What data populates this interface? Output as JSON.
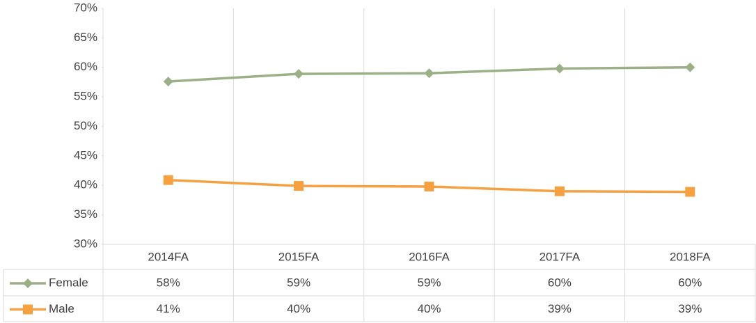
{
  "chart_data": {
    "type": "line",
    "categories": [
      "2014FA",
      "2015FA",
      "2016FA",
      "2017FA",
      "2018FA"
    ],
    "series": [
      {
        "name": "Female",
        "color": "#9bb086",
        "marker": "diamond",
        "values": [
          57.6,
          58.9,
          59.0,
          59.8,
          60.0
        ],
        "value_labels": [
          "58%",
          "59%",
          "59%",
          "60%",
          "60%"
        ]
      },
      {
        "name": "Male",
        "color": "#f5a142",
        "marker": "square",
        "values": [
          40.9,
          39.9,
          39.8,
          39.0,
          38.9
        ],
        "value_labels": [
          "41%",
          "40%",
          "40%",
          "39%",
          "39%"
        ]
      }
    ],
    "ylim": [
      30,
      70
    ],
    "yticks": [
      {
        "value": 30,
        "label": "30%"
      },
      {
        "value": 35,
        "label": "35%"
      },
      {
        "value": 40,
        "label": "40%"
      },
      {
        "value": 45,
        "label": "45%"
      },
      {
        "value": 50,
        "label": "50%"
      },
      {
        "value": 55,
        "label": "55%"
      },
      {
        "value": 60,
        "label": "60%"
      },
      {
        "value": 65,
        "label": "65%"
      },
      {
        "value": 70,
        "label": "70%"
      }
    ],
    "grid": "x",
    "data_table": true
  }
}
